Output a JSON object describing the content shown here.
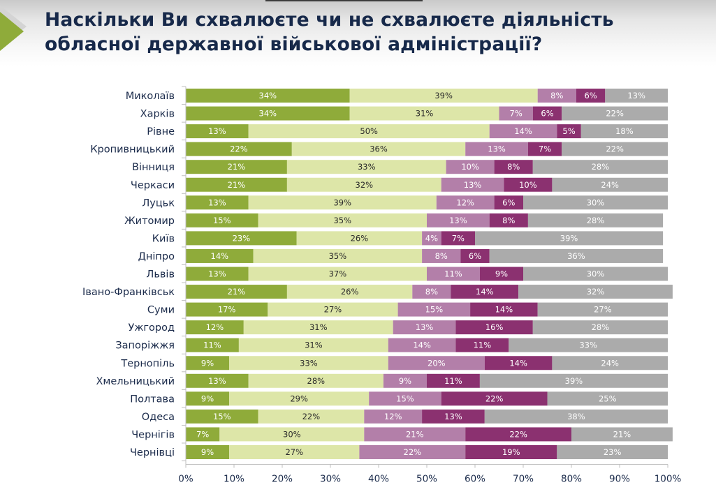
{
  "title": {
    "line1": "Наскільки Ви схвалюєте чи не схвалюєте діяльність",
    "line2": "обласної державної військової адміністрації?"
  },
  "chart_data": {
    "type": "bar",
    "orientation": "horizontal",
    "stacked": "percent",
    "title": "Наскільки Ви схвалюєте чи не схвалюєте діяльність обласної державної військової адміністрації?",
    "xlabel": "",
    "ylabel": "",
    "xlim": [
      0,
      100
    ],
    "x_ticks": [
      "0%",
      "10%",
      "20%",
      "30%",
      "40%",
      "50%",
      "60%",
      "70%",
      "80%",
      "90%",
      "100%"
    ],
    "grid": false,
    "legend": null,
    "categories": [
      "Миколаїв",
      "Харків",
      "Рівне",
      "Кропивницький",
      "Вінниця",
      "Черкаси",
      "Луцьк",
      "Житомир",
      "Київ",
      "Дніпро",
      "Львів",
      "Івано-Франківськ",
      "Суми",
      "Ужгород",
      "Запоріжжя",
      "Тернопіль",
      "Хмельницький",
      "Полтава",
      "Одеса",
      "Чернігів",
      "Чернівці"
    ],
    "series": [
      {
        "name": "series-1",
        "color": "#8fab3a",
        "label_color": "#ffffff",
        "values": [
          34,
          34,
          13,
          22,
          21,
          21,
          13,
          15,
          23,
          14,
          13,
          21,
          17,
          12,
          11,
          9,
          13,
          9,
          15,
          7,
          9
        ]
      },
      {
        "name": "series-2",
        "color": "#dde6a8",
        "label_color": "#2a2a2a",
        "values": [
          39,
          31,
          50,
          36,
          33,
          32,
          39,
          35,
          26,
          35,
          37,
          26,
          27,
          31,
          31,
          33,
          28,
          29,
          22,
          30,
          27
        ]
      },
      {
        "name": "series-3",
        "color": "#b37fa9",
        "label_color": "#ffffff",
        "values": [
          8,
          7,
          14,
          13,
          10,
          13,
          12,
          13,
          4,
          8,
          11,
          8,
          15,
          13,
          14,
          20,
          9,
          15,
          12,
          21,
          22
        ]
      },
      {
        "name": "series-4",
        "color": "#8b3170",
        "label_color": "#ffffff",
        "values": [
          6,
          6,
          5,
          7,
          8,
          10,
          6,
          8,
          7,
          6,
          9,
          14,
          14,
          16,
          11,
          14,
          11,
          22,
          13,
          22,
          19
        ]
      },
      {
        "name": "series-5",
        "color": "#ababab",
        "label_color": "#ffffff",
        "values": [
          13,
          22,
          18,
          22,
          28,
          24,
          30,
          28,
          39,
          36,
          30,
          32,
          27,
          28,
          33,
          24,
          39,
          25,
          38,
          21,
          23
        ]
      }
    ]
  }
}
